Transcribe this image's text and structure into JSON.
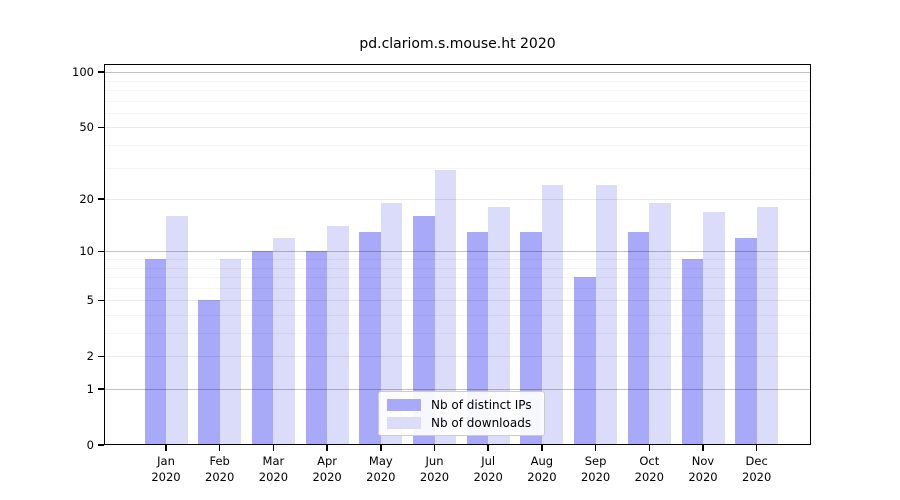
{
  "title": "pd.clariom.s.mouse.ht 2020",
  "chart_data": {
    "type": "bar",
    "title": "pd.clariom.s.mouse.ht 2020",
    "categories": [
      "Jan 2020",
      "Feb 2020",
      "Mar 2020",
      "Apr 2020",
      "May 2020",
      "Jun 2020",
      "Jul 2020",
      "Aug 2020",
      "Sep 2020",
      "Oct 2020",
      "Nov 2020",
      "Dec 2020"
    ],
    "series": [
      {
        "key": "distinct-ips",
        "name": "Nb of distinct IPs",
        "color": "#a9a9fa",
        "values": [
          9,
          5,
          10,
          10,
          13,
          16,
          13,
          13,
          7,
          13,
          9,
          12
        ]
      },
      {
        "key": "downloads",
        "name": "Nb of downloads",
        "color": "#dbdbfa",
        "values": [
          16,
          9,
          12,
          14,
          19,
          29,
          18,
          24,
          24,
          19,
          17,
          18
        ]
      }
    ],
    "y_axis": {
      "scale": "log1p",
      "tick_values": [
        0,
        1,
        2,
        5,
        10,
        20,
        50,
        100
      ],
      "tick_labels": [
        "0",
        "1",
        "2",
        "5",
        "10",
        "20",
        "50",
        "100"
      ],
      "minor_tick_values": [
        3,
        4,
        6,
        7,
        8,
        9,
        30,
        40,
        60,
        70,
        80,
        90
      ],
      "emphasized_values": [
        1,
        10,
        100
      ],
      "range": [
        0,
        110
      ]
    },
    "xlabel": "",
    "ylabel": "",
    "grid": true,
    "legend": {
      "position": "inside-bottom-center",
      "items": [
        "Nb of distinct IPs",
        "Nb of downloads"
      ]
    }
  },
  "colors": {
    "bar_distinct_ips": "#a9a9fa",
    "bar_downloads": "#dbdbfa",
    "grid_major": "#e8e8e8",
    "grid_minor": "#f3f3f3",
    "grid_emphasized": "#c2c2c2",
    "axis": "#000000",
    "legend_border": "#cccccc",
    "background": "#ffffff"
  }
}
